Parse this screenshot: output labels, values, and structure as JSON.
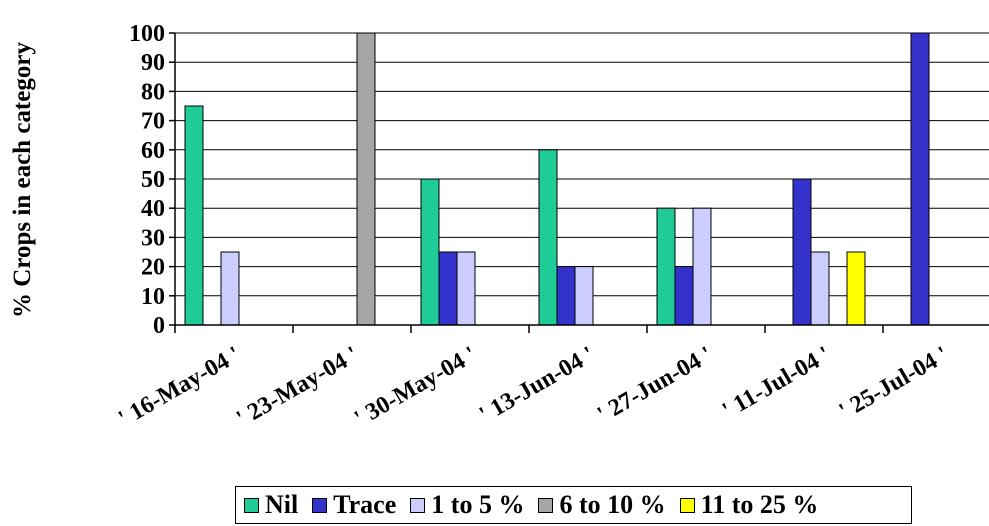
{
  "chart_data": {
    "type": "bar",
    "categories": [
      "' 16-May-04 '",
      "' 23-May-04 '",
      "' 30-May-04 '",
      "' 13-Jun-04 '",
      "' 27-Jun-04 '",
      "' 11-Jul-04 '",
      "' 25-Jul-04 '"
    ],
    "series": [
      {
        "name": "Nil",
        "color": "#1fcc98",
        "values": [
          75,
          0,
          50,
          60,
          40,
          0,
          0
        ]
      },
      {
        "name": "Trace",
        "color": "#3333cc",
        "values": [
          0,
          0,
          25,
          20,
          20,
          50,
          100
        ]
      },
      {
        "name": "1 to 5 %",
        "color": "#ccccff",
        "values": [
          25,
          0,
          25,
          20,
          40,
          25,
          0
        ]
      },
      {
        "name": "6 to 10 %",
        "color": "#a6a6a6",
        "values": [
          0,
          100,
          0,
          0,
          0,
          0,
          0
        ]
      },
      {
        "name": "11 to 25 %",
        "color": "#ffff00",
        "values": [
          0,
          0,
          0,
          0,
          0,
          25,
          0
        ]
      }
    ],
    "ylabel": "% Crops in each category",
    "xlabel": "",
    "title": "",
    "ylim": [
      0,
      100
    ],
    "yticks": [
      0,
      10,
      20,
      30,
      40,
      50,
      60,
      70,
      80,
      90,
      100
    ],
    "grid": true,
    "legend": "bottom"
  }
}
